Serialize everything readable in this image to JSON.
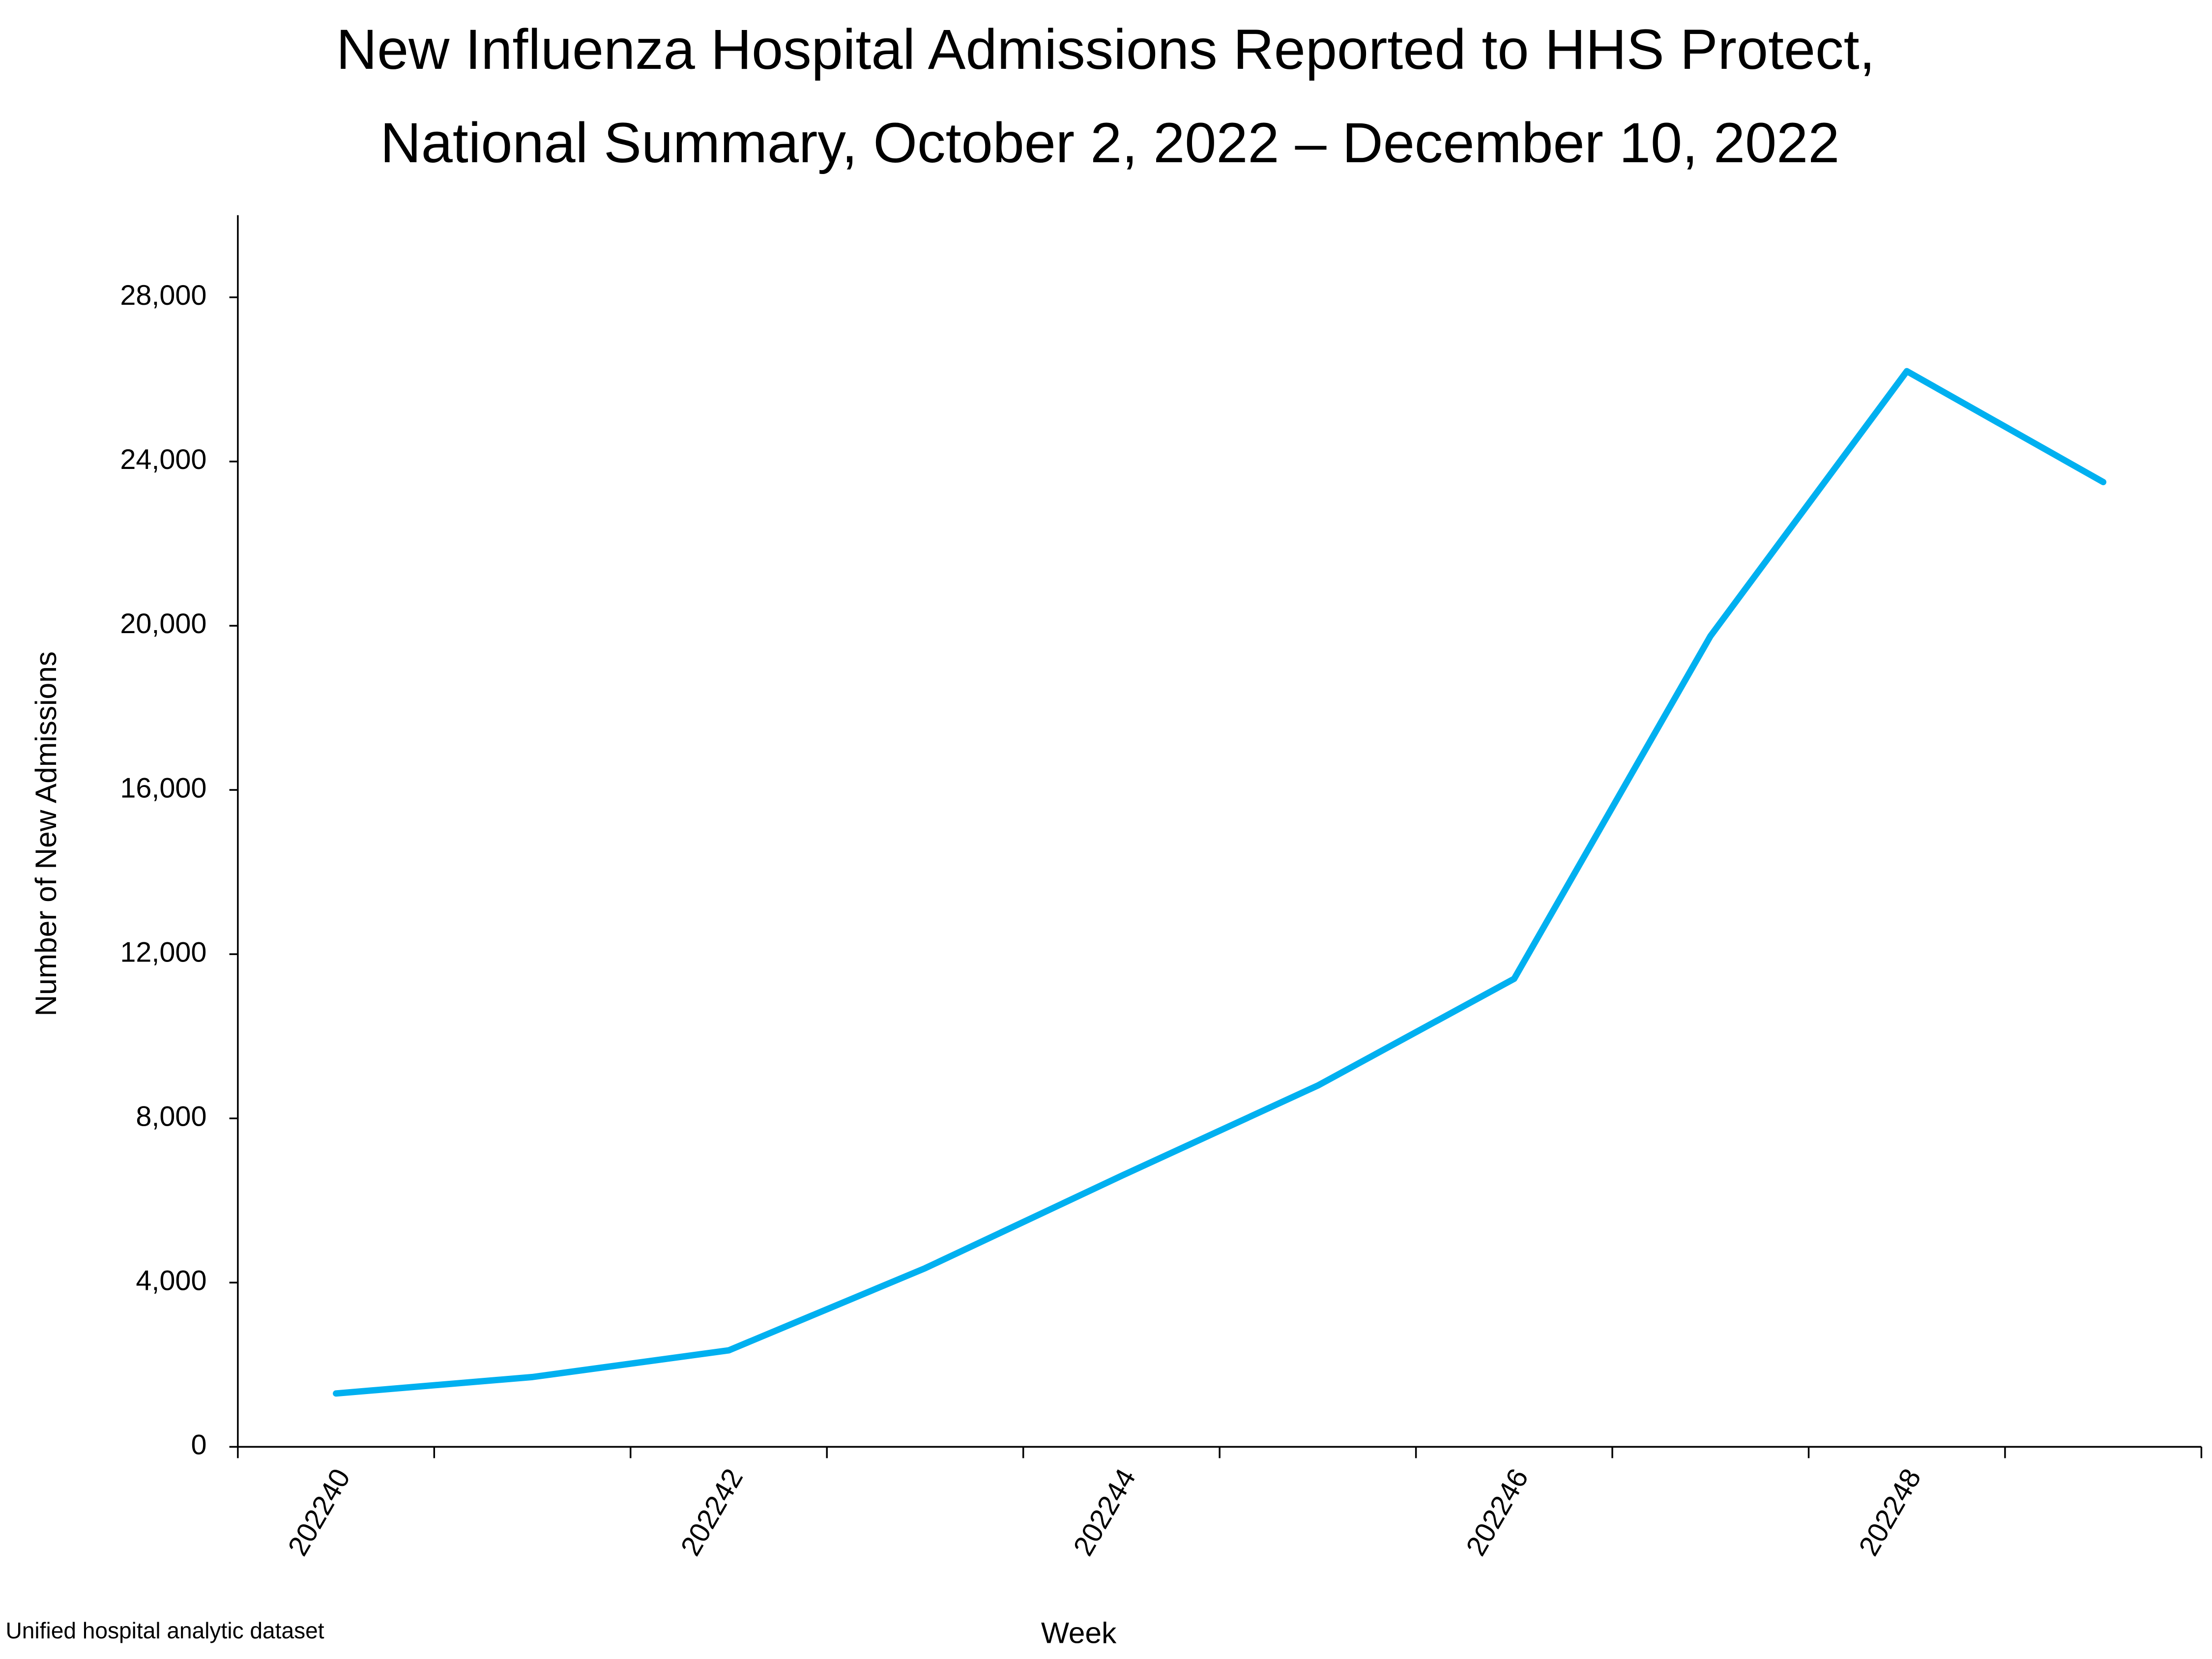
{
  "chart_data": {
    "type": "line",
    "title": "New Influenza Hospital Admissions Reported to HHS Protect,",
    "subtitle": "National Summary, October 2, 2022 – December 10, 2022",
    "x_label": "Week",
    "y_label": "Number of New Admissions",
    "source": "Unified hospital analytic dataset",
    "categories": [
      "202240",
      null,
      "202242",
      null,
      "202244",
      null,
      "202246",
      null,
      "202248",
      null
    ],
    "values": [
      1300,
      1700,
      2350,
      4350,
      6600,
      8800,
      11400,
      19750,
      26200,
      23500
    ],
    "color": "#00b0f0",
    "ylim": [
      0,
      30000
    ],
    "yticks": [
      0,
      {
        "value": 4000,
        "label": "4,000"
      },
      {
        "value": 8000,
        "label": "8,000"
      },
      {
        "value": 12000,
        "label": "12,000"
      },
      {
        "value": 16000,
        "label": "16,000"
      },
      {
        "value": 20000,
        "label": "20,000"
      },
      {
        "value": 24000,
        "label": "24,000"
      },
      {
        "value": 28000,
        "label": "28,000"
      }
    ],
    "grid": false
  }
}
